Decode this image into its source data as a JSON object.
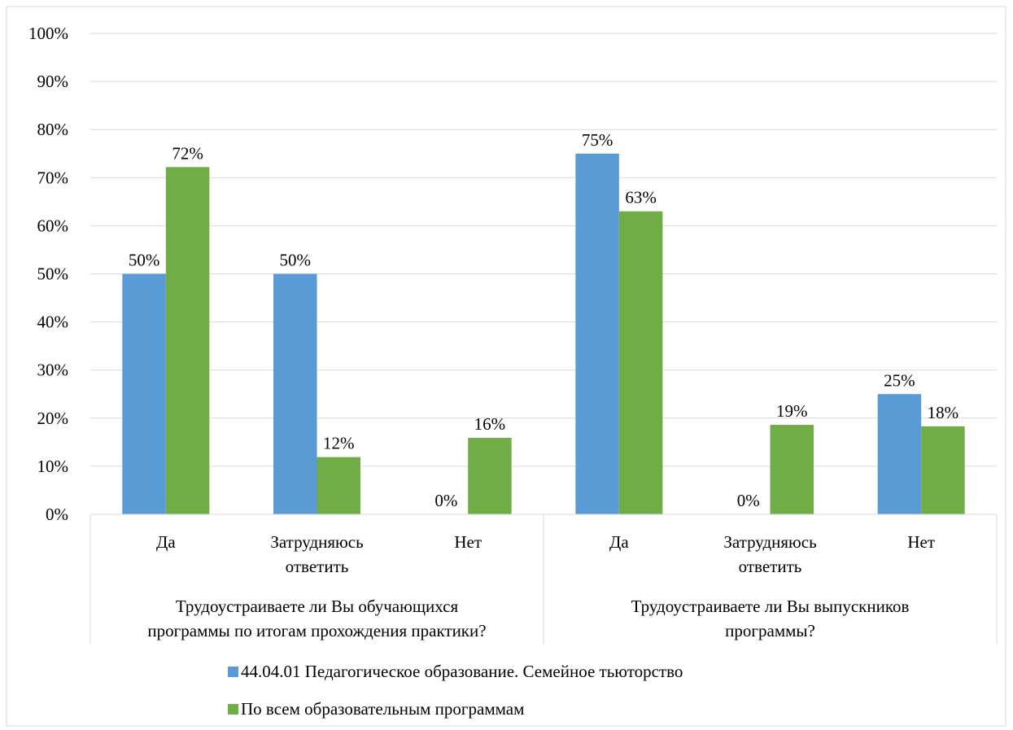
{
  "chart_data": {
    "type": "bar",
    "title": "",
    "xlabel": "",
    "ylabel": "",
    "ylim": [
      0,
      100
    ],
    "y_ticks": [
      "0%",
      "10%",
      "20%",
      "30%",
      "40%",
      "50%",
      "60%",
      "70%",
      "80%",
      "90%",
      "100%"
    ],
    "grid": true,
    "legend_position": "bottom",
    "groups": [
      {
        "label": [
          "Трудоустраиваете ли Вы обучающихся",
          "программы по итогам прохождения практики?"
        ],
        "categories": [
          [
            "Да"
          ],
          [
            "Затрудняюсь",
            "ответить"
          ],
          [
            "Нет"
          ]
        ]
      },
      {
        "label": [
          "Трудоустраиваете ли Вы выпускников",
          "программы?"
        ],
        "categories": [
          [
            "Да"
          ],
          [
            "Затрудняюсь",
            "ответить"
          ],
          [
            "Нет"
          ]
        ]
      }
    ],
    "series": [
      {
        "name": "44.04.01 Педагогическое образование. Семейное тьюторство",
        "color": "#5B9BD5",
        "values": [
          50,
          50,
          0,
          75,
          0,
          25
        ],
        "labels": [
          "50%",
          "50%",
          "0%",
          "75%",
          "0%",
          "25%"
        ]
      },
      {
        "name": "По всем образовательным программам",
        "color": "#70AD47",
        "values": [
          72.2,
          11.9,
          15.9,
          63.0,
          18.6,
          18.3
        ],
        "labels": [
          "72%",
          "12%",
          "16%",
          "63%",
          "19%",
          "18%"
        ]
      }
    ]
  }
}
